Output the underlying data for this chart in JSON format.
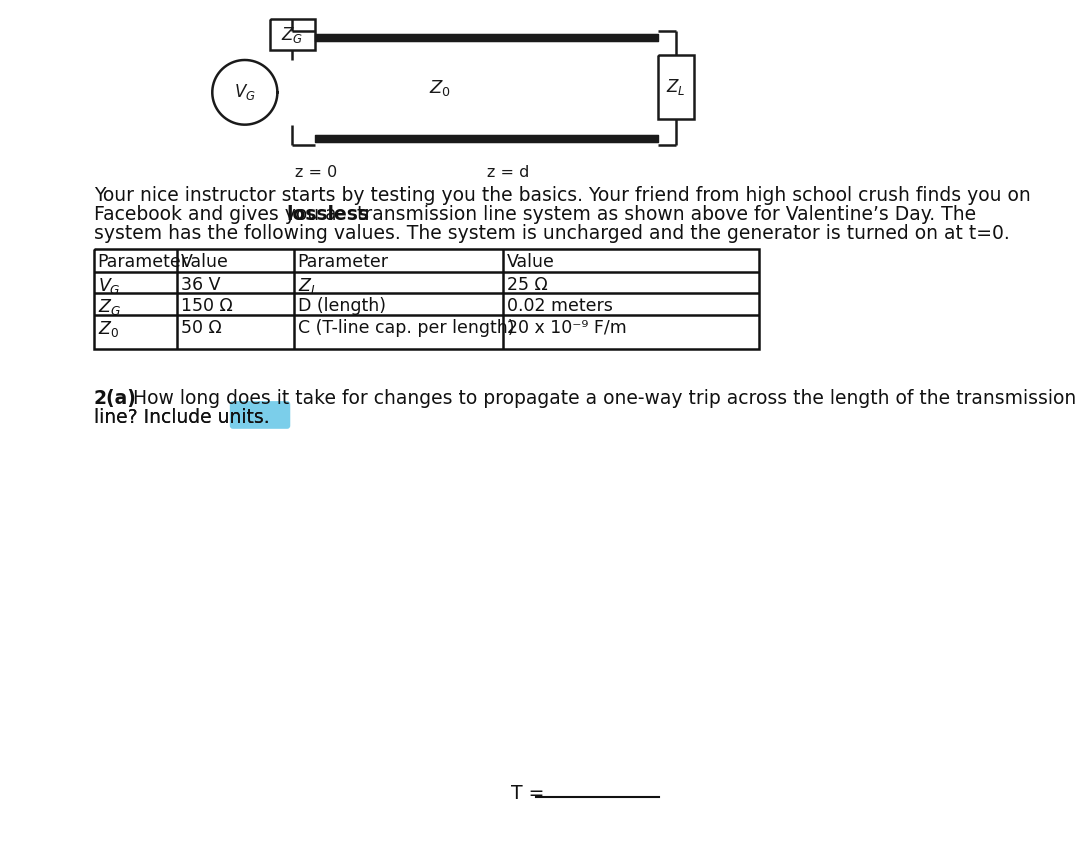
{
  "bg_color": "#ffffff",
  "circuit_color": "#1a1a1a",
  "lw": 1.8,
  "circuit": {
    "zg_label": "$Z_G$",
    "vg_label": "$V_G$",
    "zo_label": "$Z_0$",
    "zl_label": "$Z_L$",
    "z0_text": "z = 0",
    "zd_text": "z = d"
  },
  "para_line1": "Your nice instructor starts by testing you the basics. Your friend from high school crush finds you on",
  "para_line2_pre": "Facebook and gives you a ",
  "para_line2_bold": "lossless",
  "para_line2_post": " transmission line system as shown above for Valentine’s Day. The",
  "para_line3": "system has the following values. The system is uncharged and the generator is turned on at t=0.",
  "tbl_headers": [
    "Parameter",
    "Value",
    "Parameter",
    "Value"
  ],
  "tbl_left": [
    [
      "$V_G$",
      "36 V"
    ],
    [
      "$Z_G$",
      "150 Ω"
    ],
    [
      "$Z_0$",
      "50 Ω"
    ]
  ],
  "tbl_right": [
    [
      "$Z_L$",
      "25 Ω"
    ],
    [
      "D (length)",
      "0.02 meters"
    ],
    [
      "C (T-line cap. per length)",
      "20 x 10⁻⁹ F/m"
    ]
  ],
  "q_bold": "2(a)",
  "q_line1": " How long does it take for changes to propagate a one-way trip across the length of the transmission",
  "q_line2": "line? Include units.",
  "highlight_color": "#6DC9E8",
  "t_label": "T = "
}
